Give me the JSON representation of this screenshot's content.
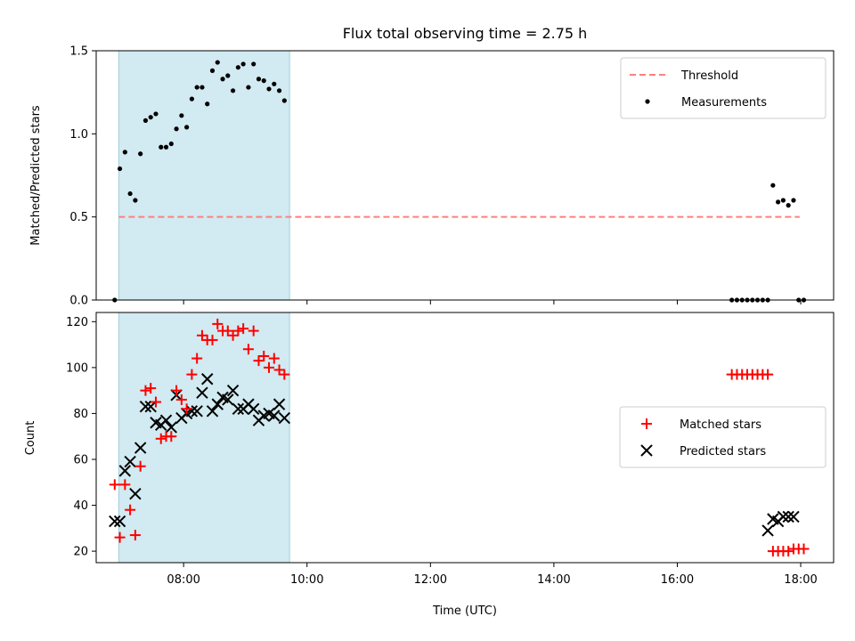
{
  "colors": {
    "threshold": "#ff7f7f",
    "measurement": "#000000",
    "matched": "#ff0000",
    "predicted": "#000000",
    "shade": "#add8e6"
  },
  "chart_data": [
    {
      "type": "scatter",
      "title": "Flux total observing time = 2.75 h",
      "xlabel": "",
      "ylabel": "Matched/Predicted stars",
      "xlim": [
        "06:35",
        "18:32"
      ],
      "ylim": [
        0,
        1.5
      ],
      "yticks": [
        "0.0",
        "0.5",
        "1.0",
        "1.5"
      ],
      "shaded_x_range": [
        "06:57",
        "09:43"
      ],
      "legend_position": "top-right",
      "threshold": {
        "name": "Threshold",
        "y": 0.5,
        "x_start": "06:57",
        "x_end": "17:59",
        "style": "dashed"
      },
      "series": [
        {
          "name": "Measurements",
          "marker": "dot",
          "x": [
            "06:53",
            "06:58",
            "07:03",
            "07:08",
            "07:13",
            "07:18",
            "07:23",
            "07:28",
            "07:33",
            "07:38",
            "07:43",
            "07:48",
            "07:53",
            "07:58",
            "08:03",
            "08:08",
            "08:13",
            "08:18",
            "08:23",
            "08:28",
            "08:33",
            "08:38",
            "08:43",
            "08:48",
            "08:53",
            "08:58",
            "09:03",
            "09:08",
            "09:13",
            "09:18",
            "09:23",
            "09:28",
            "09:33",
            "09:38",
            "16:53",
            "16:58",
            "17:03",
            "17:08",
            "17:13",
            "17:18",
            "17:23",
            "17:28",
            "17:33",
            "17:38",
            "17:43",
            "17:48",
            "17:53",
            "17:58",
            "18:03"
          ],
          "y": [
            0.0,
            0.79,
            0.89,
            0.64,
            0.6,
            0.88,
            1.08,
            1.1,
            1.12,
            0.92,
            0.92,
            0.94,
            1.03,
            1.11,
            1.04,
            1.21,
            1.28,
            1.28,
            1.18,
            1.38,
            1.43,
            1.33,
            1.35,
            1.26,
            1.4,
            1.42,
            1.28,
            1.42,
            1.33,
            1.32,
            1.27,
            1.3,
            1.26,
            1.2,
            0.0,
            0.0,
            0.0,
            0.0,
            0.0,
            0.0,
            0.0,
            0.0,
            0.69,
            0.59,
            0.6,
            0.57,
            0.6,
            0.0,
            0.0
          ]
        }
      ]
    },
    {
      "type": "scatter",
      "xlabel": "Time (UTC)",
      "ylabel": "Count",
      "xlim": [
        "06:35",
        "18:32"
      ],
      "ylim": [
        15,
        124
      ],
      "xticks": [
        "08:00",
        "10:00",
        "12:00",
        "14:00",
        "16:00",
        "18:00"
      ],
      "yticks": [
        "20",
        "40",
        "60",
        "80",
        "100",
        "120"
      ],
      "shaded_x_range": [
        "06:57",
        "09:43"
      ],
      "legend_position": "center-right",
      "series": [
        {
          "name": "Matched stars",
          "marker": "plus",
          "x": [
            "06:53",
            "06:58",
            "07:03",
            "07:08",
            "07:13",
            "07:18",
            "07:23",
            "07:28",
            "07:33",
            "07:38",
            "07:43",
            "07:48",
            "07:53",
            "07:58",
            "08:03",
            "08:08",
            "08:13",
            "08:18",
            "08:23",
            "08:28",
            "08:33",
            "08:38",
            "08:43",
            "08:48",
            "08:53",
            "08:58",
            "09:03",
            "09:08",
            "09:13",
            "09:18",
            "09:23",
            "09:28",
            "09:33",
            "09:38",
            "16:53",
            "16:58",
            "17:03",
            "17:08",
            "17:13",
            "17:18",
            "17:23",
            "17:28",
            "17:33",
            "17:38",
            "17:43",
            "17:48",
            "17:53",
            "17:58",
            "18:03"
          ],
          "y": [
            49,
            26,
            49,
            38,
            27,
            57,
            90,
            91,
            85,
            69,
            70,
            70,
            90,
            86,
            82,
            97,
            104,
            114,
            112,
            112,
            119,
            116,
            116,
            114,
            116,
            117,
            108,
            116,
            103,
            105,
            100,
            104,
            99,
            97,
            97,
            97,
            97,
            97,
            97,
            97,
            97,
            97,
            20,
            20,
            20,
            20,
            21,
            21,
            21
          ]
        },
        {
          "name": "Predicted stars",
          "marker": "x",
          "x": [
            "07:03",
            "07:08",
            "07:13",
            "07:18",
            "07:23",
            "07:28",
            "07:33",
            "07:38",
            "07:43",
            "07:48",
            "07:53",
            "07:58",
            "08:03",
            "08:08",
            "08:13",
            "08:18",
            "08:23",
            "08:28",
            "08:33",
            "08:38",
            "08:43",
            "08:48",
            "08:53",
            "08:58",
            "09:03",
            "09:08",
            "09:13",
            "09:18",
            "09:23",
            "09:28",
            "09:33",
            "09:38",
            "17:28",
            "17:33",
            "17:38",
            "17:43",
            "17:48",
            "17:53"
          ],
          "y": [
            55,
            59,
            45,
            65,
            83,
            83,
            76,
            75,
            77,
            74,
            88,
            78,
            80,
            81,
            81,
            89,
            95,
            81,
            84,
            87,
            86,
            90,
            82,
            82,
            84,
            82,
            77,
            79,
            80,
            79,
            84,
            78,
            29,
            34,
            33,
            35,
            35,
            35
          ],
          "x_first": [
            "06:53",
            "06:58"
          ],
          "y_first": [
            33,
            33
          ]
        }
      ]
    }
  ]
}
